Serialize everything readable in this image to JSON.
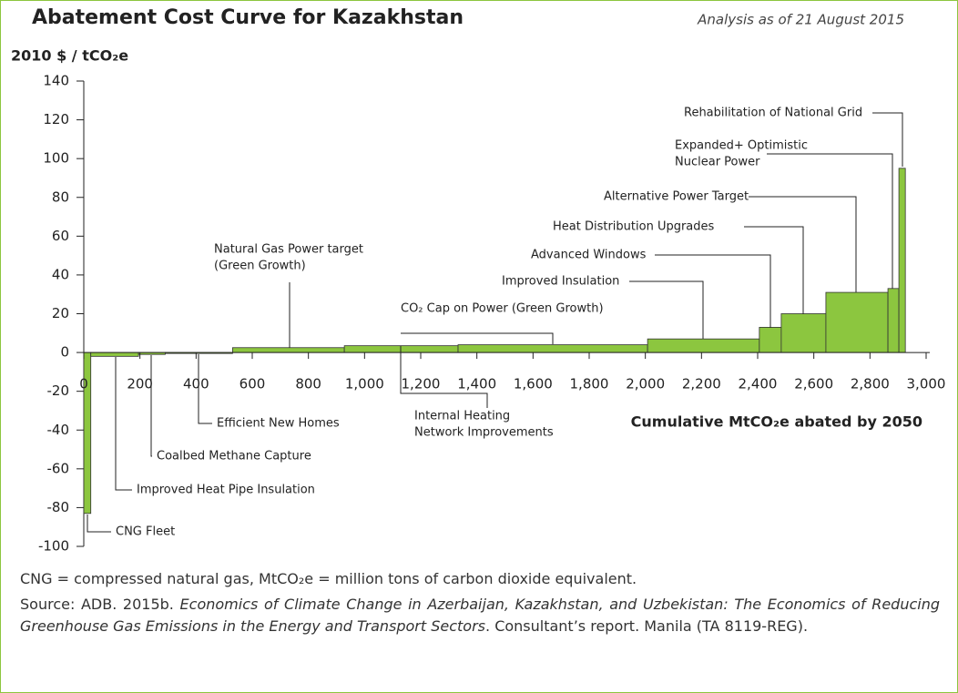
{
  "chart_data": {
    "type": "mac",
    "title": "Abatement Cost Curve for Kazakhstan",
    "subtitle": "Analysis as of 21 August 2015",
    "y_label": "2010 $ / tCO₂e",
    "x_label": "Cumulative MtCO₂e abated by 2050",
    "categories": [
      [
        "CNG Fleet"
      ],
      [
        "Improved Heat Pipe Insulation"
      ],
      [
        "Coalbed Methane Capture"
      ],
      [
        "Efficient New Homes"
      ],
      [
        "Natural Gas Power target",
        "(Green Growth)"
      ],
      [
        "Internal Heating",
        "Network Improvements"
      ],
      [
        "CO₂ Cap on Power (Green Growth)"
      ],
      [
        "Improved Insulation"
      ],
      [
        "Advanced Windows"
      ],
      [
        "Heat Distribution Upgrades"
      ],
      [
        "Alternative Power Target"
      ],
      [
        "Expanded+ Optimistic",
        "Nuclear Power"
      ],
      [
        "Rehabilitation of National Grid"
      ]
    ],
    "widths": [
      25,
      170,
      95,
      240,
      398,
      405,
      675,
      398,
      78,
      159,
      221,
      39,
      23
    ],
    "values": [
      -83,
      -2,
      -1,
      -0.5,
      2.5,
      3.5,
      4,
      7,
      13,
      20,
      31,
      33,
      95
    ],
    "color": "#8cc63f",
    "xlim": [
      0,
      3000
    ],
    "xticks": [
      0,
      200,
      400,
      600,
      800,
      {
        "value": 1000,
        "label": "1,000"
      },
      {
        "value": 1200,
        "label": "1,200"
      },
      {
        "value": 1400,
        "label": "1,400"
      },
      {
        "value": 1600,
        "label": "1,600"
      },
      {
        "value": 1800,
        "label": "1,800"
      },
      {
        "value": 2000,
        "label": "2,000"
      },
      {
        "value": 2200,
        "label": "2,200"
      },
      {
        "value": 2400,
        "label": "2,400"
      },
      {
        "value": 2600,
        "label": "2,600"
      },
      {
        "value": 2800,
        "label": "2,800"
      },
      {
        "value": 3000,
        "label": "3,000"
      }
    ],
    "ylim": [
      -100,
      140
    ],
    "yticks": [
      -100,
      -80,
      -60,
      -40,
      -20,
      0,
      20,
      40,
      60,
      80,
      100,
      120,
      140
    ]
  },
  "notes": {
    "abbreviations": "CNG = compressed natural gas, MtCO₂e = million tons of carbon dioxide equivalent.",
    "source_prefix": "Source: ADB. 2015b.",
    "source_title": "Economics of Climate Change in Azerbaijan, Kazakhstan, and Uzbekistan: The Economics of Reducing Greenhouse Gas Emissions in the Energy and Transport Sectors",
    "source_suffix": ". Consultant’s report. Manila (TA 8119-REG)."
  }
}
